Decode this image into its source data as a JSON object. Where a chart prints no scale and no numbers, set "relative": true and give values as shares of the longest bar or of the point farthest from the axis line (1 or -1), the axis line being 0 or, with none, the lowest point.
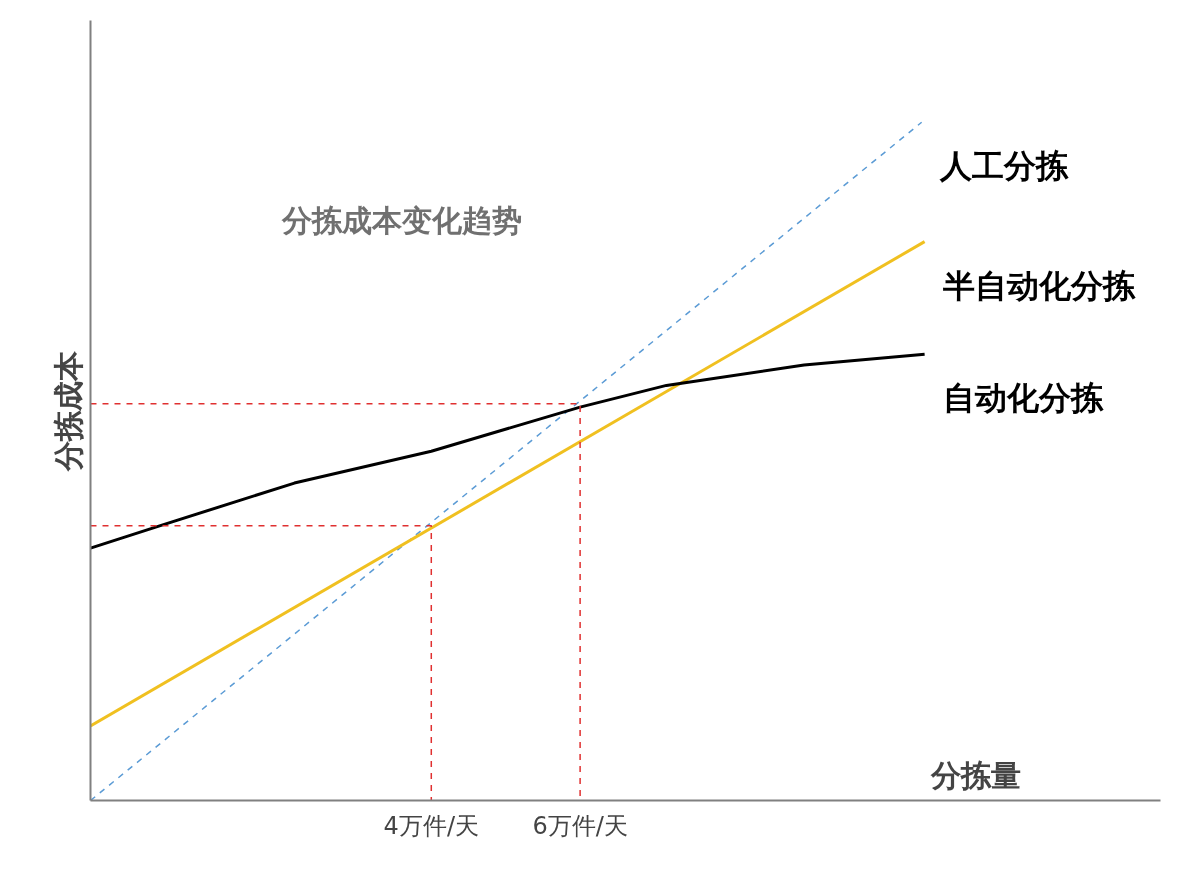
{
  "chart_data": {
    "type": "line",
    "title": "分拣成本变化趋势",
    "xlabel": "分拣量",
    "ylabel": "分拣成本",
    "relative": true,
    "grid": false,
    "marker": "none",
    "xlim": [
      -0.58,
      13.8
    ],
    "xticks": [
      {
        "value": 4,
        "label": "4万件/天"
      },
      {
        "value": 6,
        "label": "6万件/天"
      }
    ],
    "series": [
      {
        "name": "人工分拣",
        "color": "#5b9bd5",
        "line_style": "dashed",
        "x": [
          -0.58,
          10.59
        ],
        "values": [
          0,
          1.0
        ]
      },
      {
        "name": "半自动化分拣",
        "color": "#f0c020",
        "line_style": "solid",
        "x": [
          -0.58,
          10.63
        ],
        "values": [
          0.11,
          0.824
        ]
      },
      {
        "name": "自动化分拣",
        "color": "#000000",
        "line_style": "solid",
        "x": [
          -0.58,
          0.38,
          2.16,
          4.0,
          6.0,
          7.16,
          9.01,
          10.63
        ],
        "values": [
          0.372,
          0.406,
          0.468,
          0.515,
          0.58,
          0.612,
          0.642,
          0.658
        ]
      },
      {
        "color": "#e03030",
        "line_style": "dashed",
        "x": [
          -0.58,
          4,
          4
        ],
        "values": [
          0.405,
          0.405,
          0
        ]
      },
      {
        "color": "#e03030",
        "line_style": "dashed",
        "x": [
          -0.58,
          6,
          6
        ],
        "values": [
          0.585,
          0.585,
          0
        ]
      }
    ]
  }
}
